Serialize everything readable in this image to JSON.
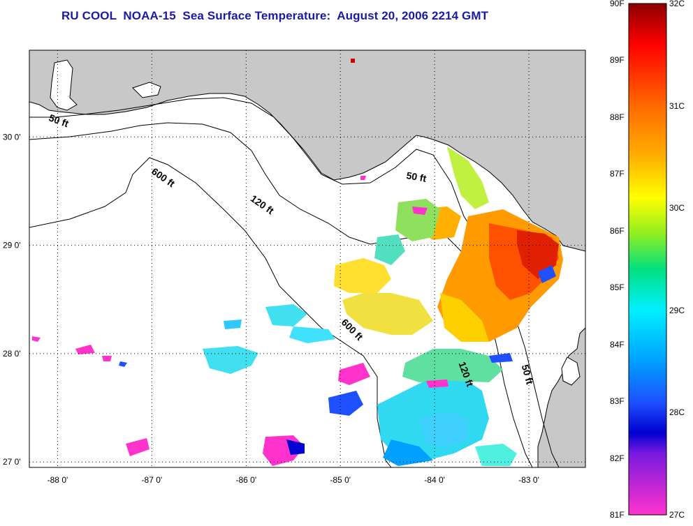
{
  "title": "RU COOL  NOAA-15  Sea Surface Temperature:  August 20, 2006 2214 GMT",
  "map": {
    "lon_range": [
      -88.3,
      -82.4
    ],
    "lat_range": [
      26.95,
      30.8
    ],
    "lon_ticks": [
      {
        "lon": -88,
        "label": "-88 0'"
      },
      {
        "lon": -87,
        "label": "-87 0'"
      },
      {
        "lon": -86,
        "label": "-86 0'"
      },
      {
        "lon": -85,
        "label": "-85 0'"
      },
      {
        "lon": -84,
        "label": "-84 0'"
      },
      {
        "lon": -83,
        "label": "-83 0'"
      }
    ],
    "lat_ticks": [
      {
        "lat": 30,
        "label": "30 0'"
      },
      {
        "lat": 29,
        "label": "29 0'"
      },
      {
        "lat": 28,
        "label": "28 0'"
      },
      {
        "lat": 27,
        "label": "27 0'"
      }
    ],
    "isobath_labels": [
      {
        "text": "50 ft",
        "lon": -88.0,
        "lat": 30.12
      },
      {
        "text": "600 ft",
        "lon": -86.9,
        "lat": 29.6
      },
      {
        "text": "120 ft",
        "lon": -85.85,
        "lat": 29.35
      },
      {
        "text": "50 ft",
        "lon": -84.2,
        "lat": 29.6
      },
      {
        "text": "600 ft",
        "lon": -84.9,
        "lat": 28.2
      },
      {
        "text": "120 ft",
        "lon": -83.7,
        "lat": 27.8
      },
      {
        "text": "50 ft",
        "lon": -83.05,
        "lat": 27.8
      }
    ],
    "colors": {
      "land": "#c8c8c8",
      "water": "#ffffff",
      "coast": "#000000",
      "grid": "#000000"
    }
  },
  "colorbar": {
    "f_labels": [
      "90F",
      "89F",
      "88F",
      "87F",
      "86F",
      "85F",
      "84F",
      "83F",
      "82F",
      "81F"
    ],
    "c_labels": [
      "32C",
      "31C",
      "30C",
      "29C",
      "28C",
      "27C"
    ],
    "gradient": [
      {
        "stop": 0.0,
        "color": "#8b0000"
      },
      {
        "stop": 0.08,
        "color": "#ff0000"
      },
      {
        "stop": 0.2,
        "color": "#ff6a00"
      },
      {
        "stop": 0.3,
        "color": "#ffb000"
      },
      {
        "stop": 0.38,
        "color": "#ffff00"
      },
      {
        "stop": 0.45,
        "color": "#90ee20"
      },
      {
        "stop": 0.52,
        "color": "#00e080"
      },
      {
        "stop": 0.6,
        "color": "#00f0ff"
      },
      {
        "stop": 0.7,
        "color": "#00a0ff"
      },
      {
        "stop": 0.78,
        "color": "#1e50ff"
      },
      {
        "stop": 0.84,
        "color": "#0000d0"
      },
      {
        "stop": 0.88,
        "color": "#7a1ae0"
      },
      {
        "stop": 1.0,
        "color": "#ff33cc"
      }
    ]
  }
}
